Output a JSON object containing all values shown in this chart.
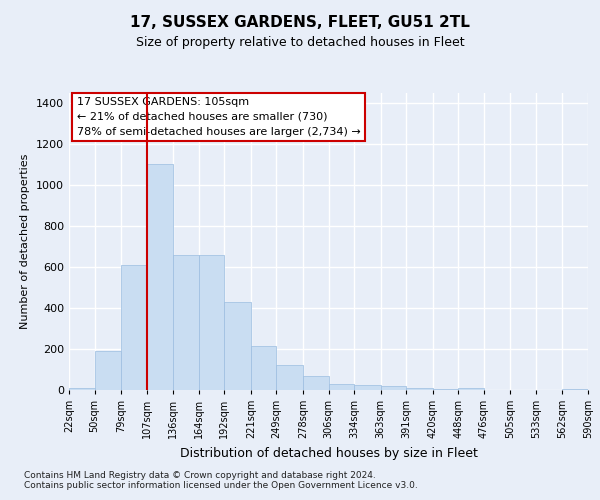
{
  "title": "17, SUSSEX GARDENS, FLEET, GU51 2TL",
  "subtitle": "Size of property relative to detached houses in Fleet",
  "xlabel": "Distribution of detached houses by size in Fleet",
  "ylabel": "Number of detached properties",
  "bar_color": "#c9ddf2",
  "bar_edge_color": "#9bbde0",
  "vline_color": "#cc0000",
  "vline_x": 107,
  "annotation_text": "17 SUSSEX GARDENS: 105sqm\n← 21% of detached houses are smaller (730)\n78% of semi-detached houses are larger (2,734) →",
  "annotation_box_color": "#ffffff",
  "annotation_box_edge": "#cc0000",
  "footer": "Contains HM Land Registry data © Crown copyright and database right 2024.\nContains public sector information licensed under the Open Government Licence v3.0.",
  "bin_edges": [
    22,
    50,
    79,
    107,
    136,
    164,
    192,
    221,
    249,
    278,
    306,
    334,
    363,
    391,
    420,
    448,
    476,
    505,
    533,
    562,
    590
  ],
  "bar_heights": [
    10,
    190,
    610,
    1100,
    660,
    660,
    430,
    215,
    120,
    70,
    30,
    25,
    20,
    10,
    5,
    10,
    0,
    0,
    0,
    5
  ],
  "ylim": [
    0,
    1450
  ],
  "yticks": [
    0,
    200,
    400,
    600,
    800,
    1000,
    1200,
    1400
  ],
  "background_color": "#e8eef8",
  "plot_bg_color": "#e8eef8",
  "grid_color": "#ffffff"
}
